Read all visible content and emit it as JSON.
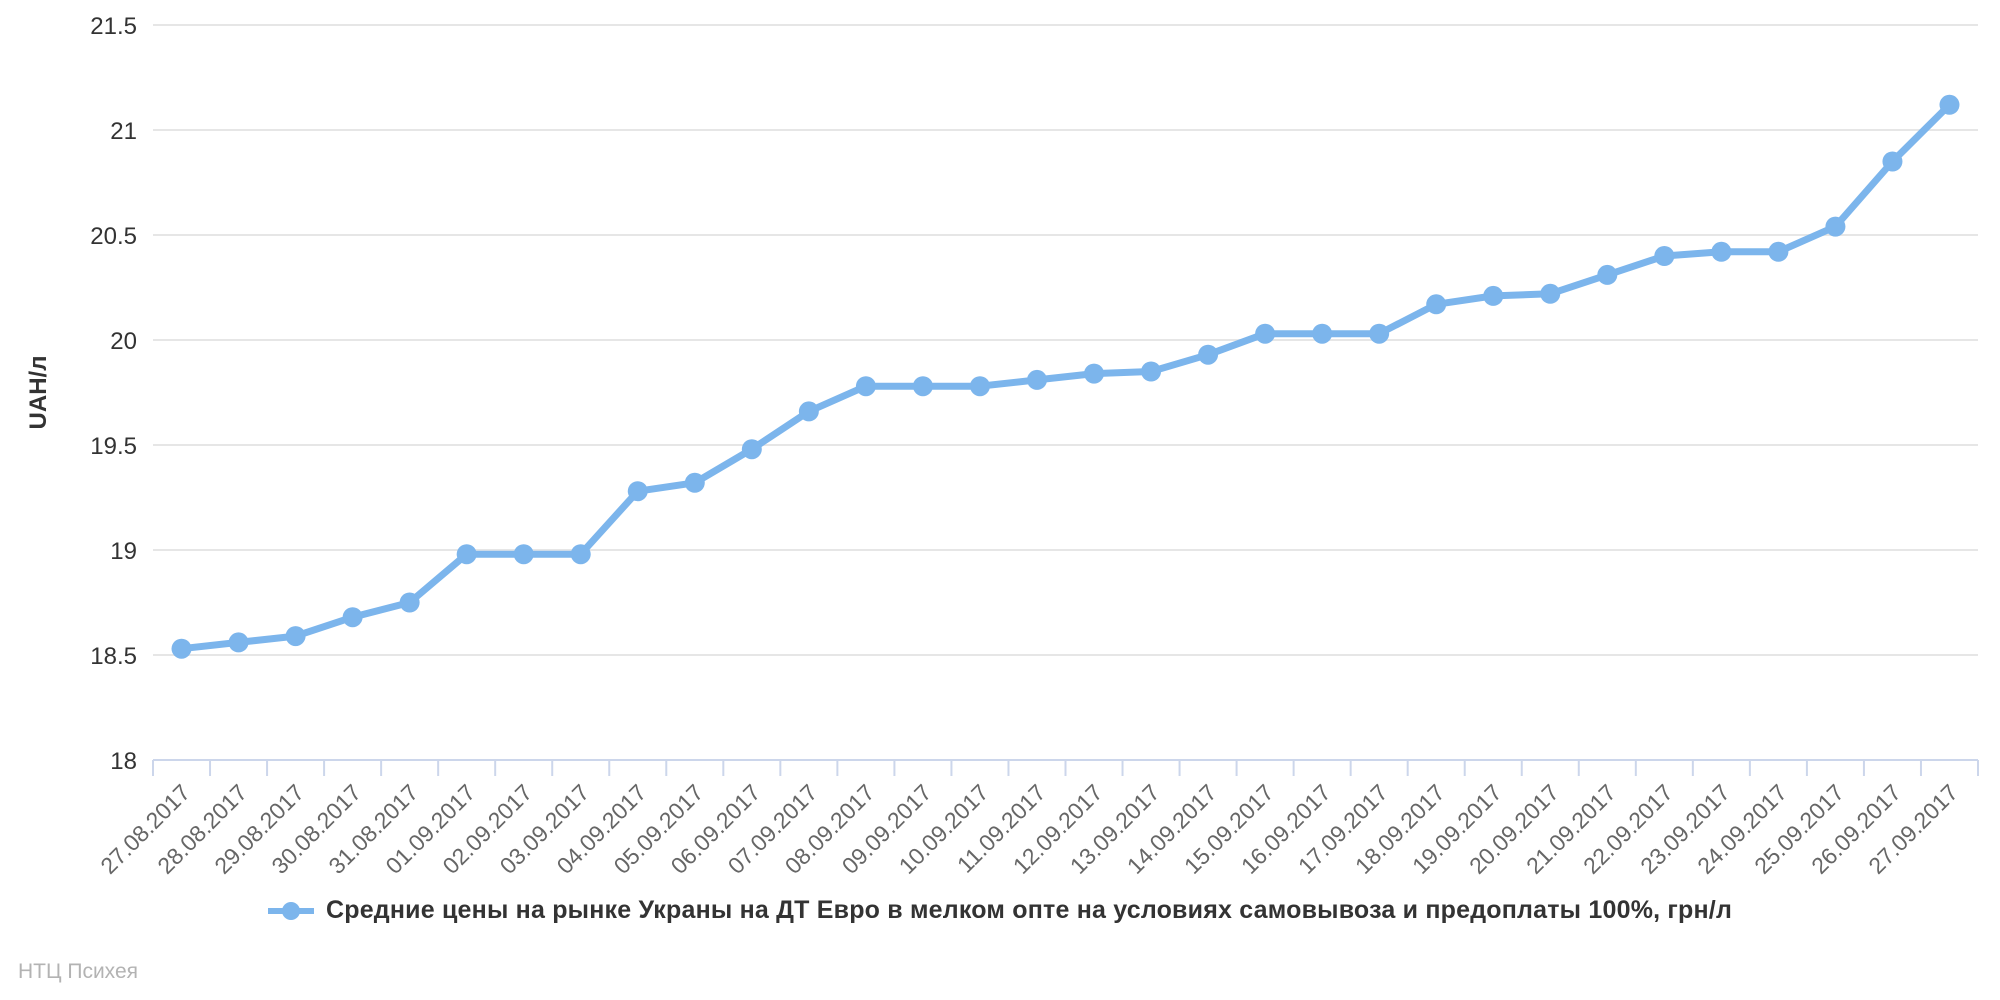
{
  "chart_data": {
    "type": "line",
    "title": "",
    "categories": [
      "27.08.2017",
      "28.08.2017",
      "29.08.2017",
      "30.08.2017",
      "31.08.2017",
      "01.09.2017",
      "02.09.2017",
      "03.09.2017",
      "04.09.2017",
      "05.09.2017",
      "06.09.2017",
      "07.09.2017",
      "08.09.2017",
      "09.09.2017",
      "10.09.2017",
      "11.09.2017",
      "12.09.2017",
      "13.09.2017",
      "14.09.2017",
      "15.09.2017",
      "16.09.2017",
      "17.09.2017",
      "18.09.2017",
      "19.09.2017",
      "20.09.2017",
      "21.09.2017",
      "22.09.2017",
      "23.09.2017",
      "24.09.2017",
      "25.09.2017",
      "26.09.2017",
      "27.09.2017"
    ],
    "series": [
      {
        "name": "Средние цены на рынке Украны на ДТ Евро в мелком опте на условиях самовывоза и предоплаты 100%, грн/л",
        "values": [
          18.53,
          18.56,
          18.59,
          18.68,
          18.75,
          18.98,
          18.98,
          18.98,
          19.28,
          19.32,
          19.48,
          19.66,
          19.78,
          19.78,
          19.78,
          19.81,
          19.84,
          19.85,
          19.93,
          20.03,
          20.03,
          20.03,
          20.17,
          20.21,
          20.22,
          20.31,
          20.4,
          20.42,
          20.42,
          20.54,
          20.85,
          21.12
        ]
      }
    ],
    "xlabel": "",
    "ylabel": "UAH/л",
    "ylim": [
      18,
      21.5
    ],
    "ytick_step": 0.5,
    "grid": true,
    "legend_position": "bottom"
  },
  "credits": {
    "text": "НТЦ Психея"
  },
  "colors": {
    "series": "#7cb5ec",
    "grid": "#e6e6e6",
    "axis_line": "#ccd6eb",
    "tick": "#ccd6eb",
    "x_label": "#666666",
    "y_label": "#333333",
    "legend_text": "#333333",
    "credits_text": "#b3b3b3",
    "background": "#ffffff"
  }
}
